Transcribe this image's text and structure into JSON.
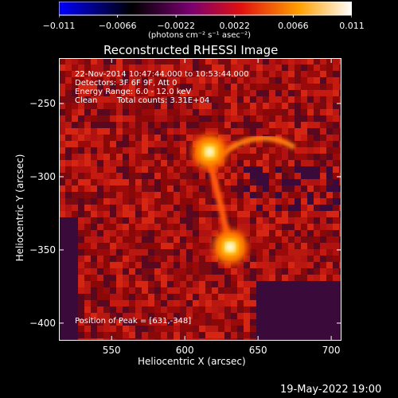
{
  "chart_data": {
    "type": "heatmap",
    "title": "Reconstructed RHESSI Image",
    "xlabel": "Heliocentric X (arcsec)",
    "ylabel": "Heliocentric Y (arcsec)",
    "xlim": [
      514,
      707
    ],
    "ylim": [
      -412,
      -219
    ],
    "x_ticks": [
      550,
      600,
      650,
      700
    ],
    "y_ticks": [
      -250,
      -300,
      -350,
      -400
    ],
    "colorbar": {
      "range": [
        -0.011,
        0.011
      ],
      "tick_labels": [
        "-0.011",
        "-0.0066",
        "-0.0022",
        "0.0022",
        "0.0066",
        "0.011"
      ],
      "tick_values": [
        -0.011,
        -0.0066,
        -0.0022,
        0.0022,
        0.0066,
        0.011
      ],
      "label": "(photons cm⁻² s⁻¹ asec⁻²)",
      "colors": [
        "#0000ff",
        "#000000",
        "#800080",
        "#ff0000",
        "#ffb000",
        "#ffffff"
      ]
    },
    "annotations": {
      "time": "22-Nov-2014 10:47:44.000 to 10:53:44.000",
      "detectors": "Detectors: 3F 6F 9F, Att 0",
      "energy": "Energy Range: 6.0 - 12.0 keV",
      "method": "Clean",
      "counts": "Total counts: 3.31E+04",
      "peak": "Position of Peak = [631,-348]"
    },
    "sources": [
      {
        "x": 631,
        "y": -348,
        "peak": 0.011
      },
      {
        "x": 617,
        "y": -283,
        "peak": 0.0085
      }
    ]
  },
  "footer": {
    "date": "19-May-2022 19:00"
  }
}
